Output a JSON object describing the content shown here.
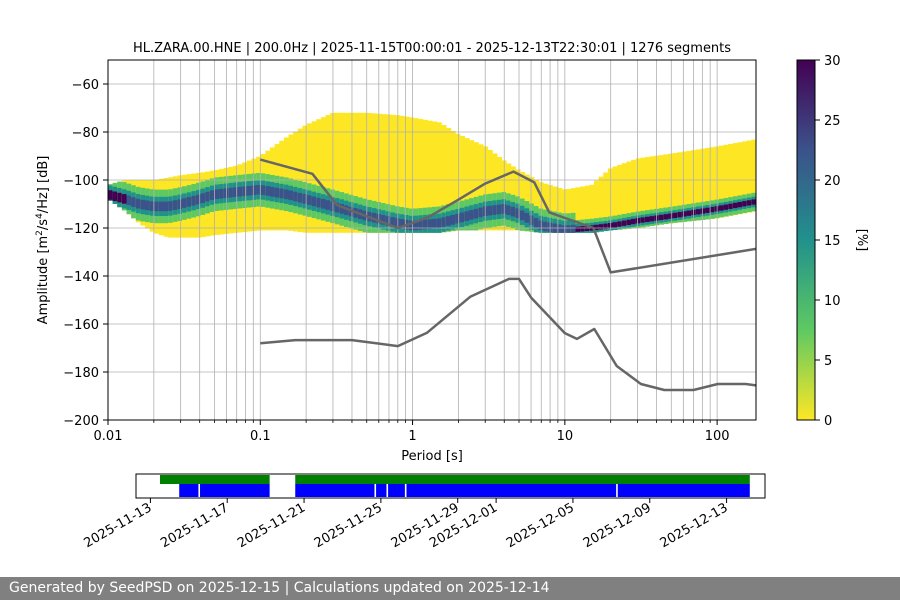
{
  "footer": {
    "text": "Generated by SeedPSD on 2025-12-15 | Calculations updated on 2025-12-14"
  },
  "chart_data": [
    {
      "type": "heatmap",
      "title": "HL.ZARA.00.HNE | 200.0Hz | 2025-11-15T00:00:01 - 2025-12-13T22:30:01 | 1276 segments",
      "xlabel": "Period [s]",
      "ylabel_parts": [
        "Amplitude [m",
        "2",
        "/s",
        "4",
        "/Hz] [dB]"
      ],
      "x_scale": "log",
      "xlim": [
        0.01,
        180
      ],
      "ylim": [
        -200,
        -50
      ],
      "x_ticks": [
        {
          "value": 0.01,
          "label": "0.01"
        },
        {
          "value": 0.1,
          "label": "0.1"
        },
        {
          "value": 1,
          "label": "1"
        },
        {
          "value": 10,
          "label": "10"
        },
        {
          "value": 100,
          "label": "100"
        }
      ],
      "y_ticks": [
        {
          "value": -60,
          "label": "−60"
        },
        {
          "value": -80,
          "label": "−80"
        },
        {
          "value": -100,
          "label": "−100"
        },
        {
          "value": -120,
          "label": "−120"
        },
        {
          "value": -140,
          "label": "−140"
        },
        {
          "value": -160,
          "label": "−160"
        },
        {
          "value": -180,
          "label": "−180"
        },
        {
          "value": -200,
          "label": "−200"
        }
      ],
      "grid": true,
      "colorbar": {
        "label": "[%]",
        "range": [
          0,
          30
        ],
        "ticks": [
          {
            "value": 0,
            "label": "0"
          },
          {
            "value": 5,
            "label": "5"
          },
          {
            "value": 10,
            "label": "10"
          },
          {
            "value": 15,
            "label": "15"
          },
          {
            "value": 20,
            "label": "20"
          },
          {
            "value": 25,
            "label": "25"
          },
          {
            "value": 30,
            "label": "30"
          }
        ],
        "colormap": "viridis_r",
        "stops": [
          "#fde725",
          "#5ec962",
          "#21918c",
          "#3b528b",
          "#440154"
        ]
      },
      "psd_band": {
        "period": [
          0.01,
          0.013,
          0.016,
          0.02,
          0.025,
          0.03,
          0.04,
          0.05,
          0.07,
          0.1,
          0.15,
          0.2,
          0.3,
          0.5,
          0.8,
          1,
          1.5,
          2,
          3,
          4,
          5,
          7,
          10,
          15,
          20,
          30,
          50,
          100,
          180
        ],
        "mode_db": [
          -106,
          -108,
          -110,
          -111,
          -111,
          -110,
          -108,
          -106,
          -105,
          -104,
          -106,
          -108,
          -111,
          -115,
          -118,
          -119,
          -118,
          -116,
          -113,
          -112,
          -114,
          -119,
          -121,
          -120,
          -119,
          -117,
          -115,
          -112,
          -109
        ],
        "band_low_db": [
          -108,
          -113,
          -118,
          -122,
          -124,
          -124,
          -124,
          -123,
          -122,
          -121,
          -121,
          -122,
          -122,
          -122,
          -122,
          -122,
          -122,
          -121,
          -121,
          -121,
          -121,
          -122,
          -122,
          -122,
          -121,
          -120,
          -118,
          -116,
          -113
        ],
        "band_high_db": [
          -102,
          -100,
          -100,
          -100,
          -99,
          -98,
          -97,
          -96,
          -94,
          -90,
          -82,
          -77,
          -72,
          -72,
          -73,
          -74,
          -76,
          -81,
          -86,
          -92,
          -96,
          -101,
          -104,
          -102,
          -95,
          -91,
          -89,
          -86,
          -83
        ]
      },
      "reference_curves": [
        {
          "name": "",
          "period": [
            0.1,
            0.22,
            0.32,
            0.8,
            1.25,
            2.0,
            3.0,
            4.6,
            6.3,
            7.9,
            15.4,
            20,
            180
          ],
          "db": [
            -91.5,
            -97.4,
            -110.5,
            -120.0,
            -115.7,
            -108.2,
            -101.5,
            -96.5,
            -101.0,
            -113.5,
            -120.0,
            -138.5,
            -128.7
          ]
        },
        {
          "name": "",
          "period": [
            0.1,
            0.17,
            0.4,
            0.8,
            1.24,
            2.4,
            4.3,
            5.0,
            6.0,
            10,
            12,
            15.6,
            21.9,
            31.6,
            45,
            70,
            101,
            154,
            180
          ],
          "db": [
            -168.0,
            -166.7,
            -166.7,
            -169.2,
            -163.7,
            -148.6,
            -141.2,
            -141.2,
            -149.0,
            -163.8,
            -166.2,
            -162.1,
            -177.5,
            -185.0,
            -187.5,
            -187.5,
            -185.0,
            -185.0,
            -185.6
          ]
        }
      ]
    },
    {
      "type": "timeline",
      "xlim": [
        "2025-11-12T06:00:00",
        "2025-12-15T00:00:00"
      ],
      "x_ticks": [
        "2025-11-13",
        "2025-11-17",
        "2025-11-21",
        "2025-11-25",
        "2025-11-29",
        "2025-12-01",
        "2025-12-05",
        "2025-12-09",
        "2025-12-13"
      ],
      "series": [
        {
          "name": "",
          "color": "#008000",
          "spans": [
            [
              "2025-11-13T12:00:00",
              "2025-11-19T05:00:00"
            ],
            [
              "2025-11-20T13:00:00",
              "2025-12-14T05:00:00"
            ]
          ]
        },
        {
          "name": "",
          "color": "#0000ff",
          "spans": [
            [
              "2025-11-14T12:00:00",
              "2025-11-15T12:00:00"
            ],
            [
              "2025-11-15T14:00:00",
              "2025-11-19T05:00:00"
            ],
            [
              "2025-11-20T13:00:00",
              "2025-11-24T16:00:00"
            ],
            [
              "2025-11-24T18:00:00",
              "2025-11-25T07:00:00"
            ],
            [
              "2025-11-25T09:00:00",
              "2025-11-26T06:00:00"
            ],
            [
              "2025-11-26T08:00:00",
              "2025-12-07T06:00:00"
            ],
            [
              "2025-12-07T08:00:00",
              "2025-12-14T05:00:00"
            ]
          ]
        }
      ]
    }
  ]
}
